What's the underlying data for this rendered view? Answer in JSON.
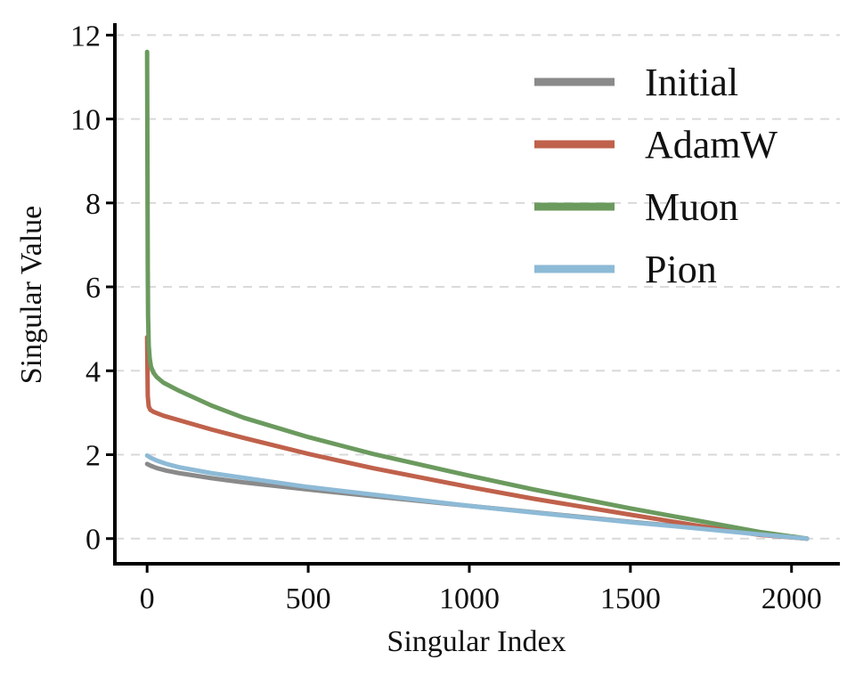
{
  "chart_data": {
    "type": "line",
    "xlabel": "Singular Index",
    "ylabel": "Singular Value",
    "xlim": [
      -100,
      2150
    ],
    "ylim": [
      -0.6,
      12.2
    ],
    "xticks": [
      0,
      500,
      1000,
      1500,
      2000
    ],
    "xtick_labels": [
      "0",
      "500",
      "1000",
      "1500",
      "2000"
    ],
    "yticks": [
      0,
      2,
      4,
      6,
      8,
      10,
      12
    ],
    "ytick_labels": [
      "0",
      "2",
      "4",
      "6",
      "8",
      "10",
      "12"
    ],
    "grid": "horizontal dashed",
    "legend_position": "top-right",
    "series": [
      {
        "name": "Initial",
        "color": "#8a8a8a",
        "x": [
          0,
          10,
          30,
          60,
          100,
          200,
          300,
          500,
          700,
          1000,
          1200,
          1500,
          1700,
          1900,
          2048
        ],
        "y": [
          1.78,
          1.74,
          1.68,
          1.62,
          1.56,
          1.44,
          1.34,
          1.17,
          1.01,
          0.78,
          0.63,
          0.4,
          0.26,
          0.11,
          0.0
        ]
      },
      {
        "name": "AdamW",
        "color": "#c0614b",
        "x": [
          0,
          2,
          5,
          10,
          20,
          50,
          100,
          200,
          300,
          500,
          700,
          1000,
          1200,
          1500,
          1700,
          1900,
          2048
        ],
        "y": [
          4.8,
          3.4,
          3.15,
          3.07,
          3.02,
          2.93,
          2.82,
          2.6,
          2.4,
          2.02,
          1.68,
          1.23,
          0.95,
          0.57,
          0.32,
          0.09,
          0.0
        ]
      },
      {
        "name": "Muon",
        "color": "#6b9a5e",
        "x": [
          0,
          1,
          2,
          3,
          5,
          8,
          12,
          20,
          30,
          50,
          100,
          200,
          300,
          500,
          700,
          1000,
          1200,
          1500,
          1700,
          1900,
          2048
        ],
        "y": [
          11.6,
          9.0,
          6.5,
          5.3,
          4.6,
          4.3,
          4.1,
          3.95,
          3.85,
          3.72,
          3.52,
          3.17,
          2.88,
          2.42,
          2.02,
          1.5,
          1.17,
          0.72,
          0.44,
          0.16,
          0.0
        ]
      },
      {
        "name": "Pion",
        "color": "#8dbad6",
        "x": [
          0,
          10,
          30,
          60,
          100,
          200,
          300,
          500,
          700,
          1000,
          1200,
          1500,
          1700,
          1900,
          2048
        ],
        "y": [
          1.98,
          1.93,
          1.86,
          1.78,
          1.7,
          1.56,
          1.45,
          1.23,
          1.05,
          0.78,
          0.62,
          0.39,
          0.25,
          0.1,
          0.0
        ]
      }
    ]
  }
}
